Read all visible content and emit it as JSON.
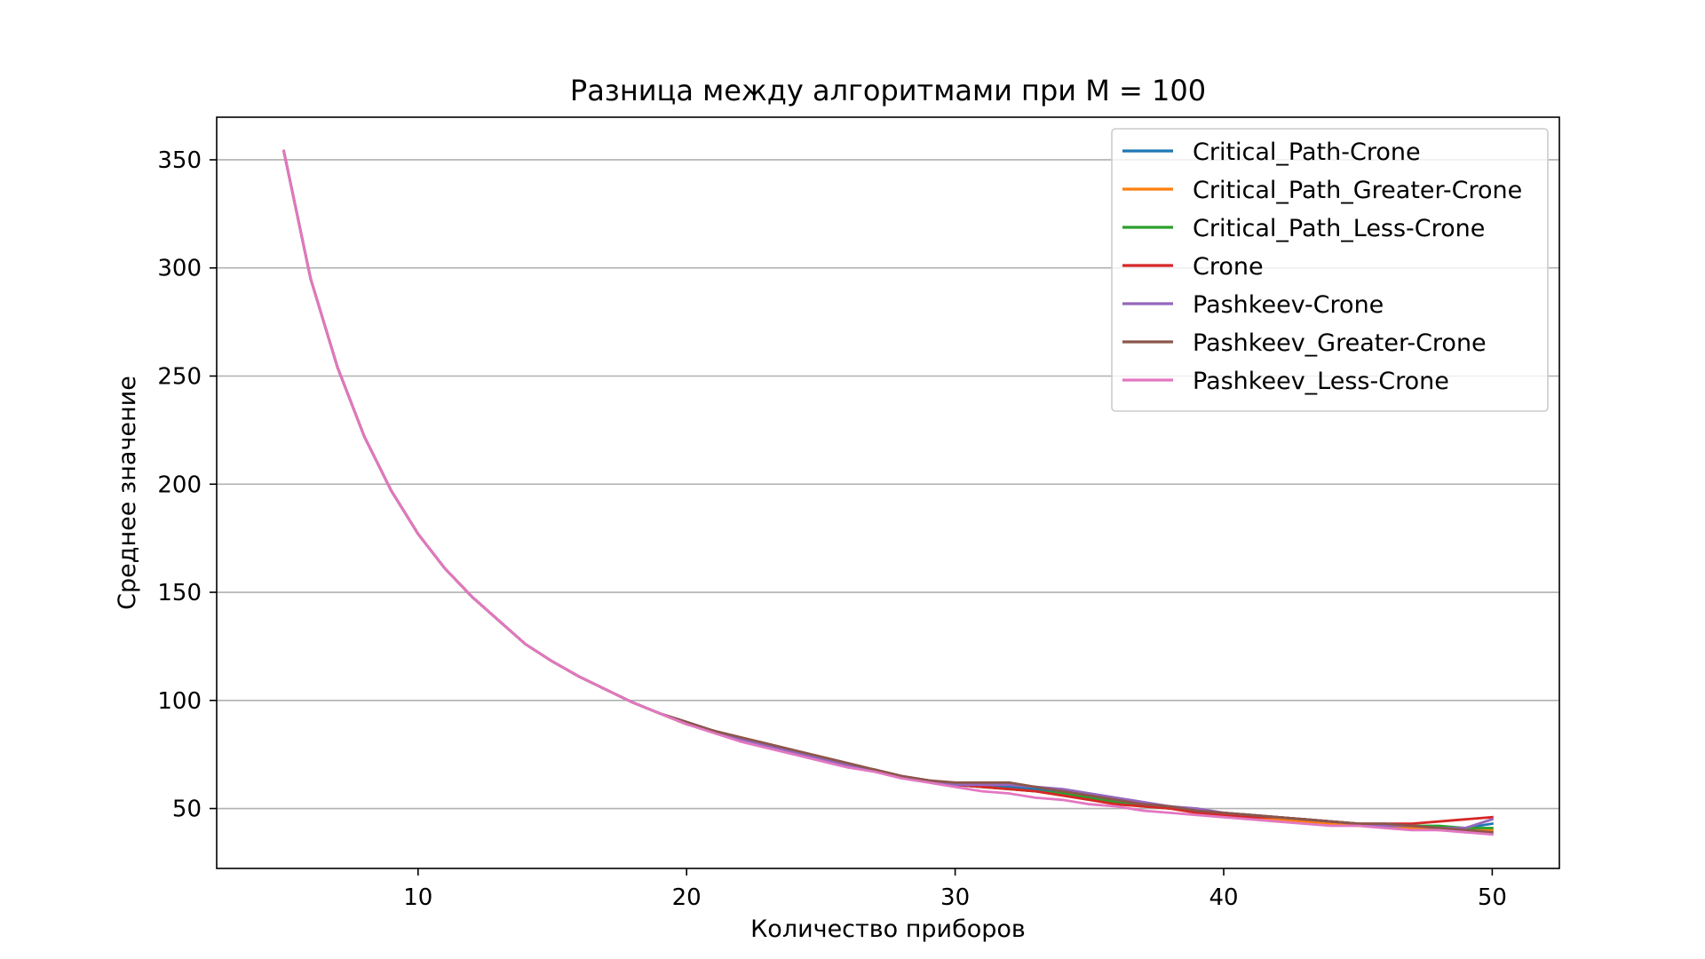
{
  "chart_data": {
    "type": "line",
    "title": "Разница между алгоритмами при M = 100",
    "xlabel": "Количество приборов",
    "ylabel": "Среднее значение",
    "xlim": [
      2.5,
      52.5
    ],
    "ylim": [
      22.3,
      369.7
    ],
    "xticks": [
      10,
      20,
      30,
      40,
      50
    ],
    "yticks": [
      50,
      100,
      150,
      200,
      250,
      300,
      350
    ],
    "grid": "horizontal",
    "legend_position": "top-right",
    "x": [
      5,
      6,
      7,
      8,
      9,
      10,
      11,
      12,
      13,
      14,
      15,
      16,
      17,
      18,
      19,
      20,
      21,
      22,
      23,
      24,
      25,
      26,
      27,
      28,
      29,
      30,
      31,
      32,
      33,
      34,
      35,
      36,
      37,
      38,
      39,
      40,
      41,
      42,
      43,
      44,
      45,
      46,
      47,
      48,
      49,
      50
    ],
    "series": [
      {
        "name": "Critical_Path-Crone",
        "color": "#1f77b4",
        "values": [
          354,
          295,
          254,
          222,
          197,
          177,
          161,
          148,
          137,
          126,
          118,
          111,
          105,
          99,
          94,
          89,
          86,
          82,
          79,
          76,
          73,
          70,
          68,
          65,
          63,
          61,
          60,
          60,
          59,
          58,
          56,
          54,
          52,
          51,
          49,
          48,
          47,
          46,
          45,
          44,
          43,
          42,
          42,
          41,
          41,
          43
        ]
      },
      {
        "name": "Critical_Path_Greater-Crone",
        "color": "#ff7f0e",
        "values": [
          354,
          295,
          254,
          222,
          197,
          177,
          161,
          148,
          137,
          126,
          118,
          111,
          105,
          99,
          94,
          89,
          86,
          82,
          79,
          76,
          73,
          70,
          68,
          65,
          63,
          61,
          60,
          59,
          58,
          56,
          54,
          52,
          51,
          50,
          48,
          47,
          46,
          45,
          44,
          43,
          42,
          42,
          41,
          40,
          40,
          40
        ]
      },
      {
        "name": "Critical_Path_Less-Crone",
        "color": "#2ca02c",
        "values": [
          354,
          295,
          254,
          222,
          197,
          177,
          161,
          148,
          137,
          126,
          118,
          111,
          105,
          99,
          94,
          89,
          86,
          82,
          79,
          76,
          73,
          70,
          68,
          65,
          63,
          61,
          60,
          59,
          58,
          57,
          55,
          53,
          51,
          50,
          49,
          48,
          47,
          46,
          45,
          44,
          43,
          42,
          42,
          42,
          41,
          41
        ]
      },
      {
        "name": "Crone",
        "color": "#d62728",
        "values": [
          354,
          295,
          254,
          222,
          197,
          177,
          161,
          148,
          137,
          126,
          118,
          111,
          105,
          99,
          94,
          89,
          86,
          82,
          79,
          76,
          73,
          70,
          68,
          65,
          63,
          61,
          60,
          59,
          58,
          56,
          54,
          52,
          51,
          50,
          48,
          47,
          46,
          46,
          45,
          44,
          43,
          43,
          43,
          44,
          45,
          46
        ]
      },
      {
        "name": "Pashkeev-Crone",
        "color": "#9467bd",
        "values": [
          354,
          295,
          254,
          222,
          197,
          177,
          161,
          148,
          137,
          126,
          118,
          111,
          105,
          99,
          94,
          90,
          86,
          82,
          79,
          76,
          73,
          70,
          68,
          65,
          63,
          61,
          61,
          61,
          60,
          59,
          57,
          55,
          53,
          51,
          50,
          48,
          47,
          46,
          45,
          44,
          43,
          42,
          42,
          41,
          41,
          45
        ]
      },
      {
        "name": "Pashkeev_Greater-Crone",
        "color": "#8c564b",
        "values": [
          354,
          295,
          254,
          222,
          197,
          177,
          161,
          148,
          137,
          126,
          118,
          111,
          105,
          99,
          94,
          90,
          86,
          83,
          80,
          77,
          74,
          71,
          68,
          65,
          63,
          62,
          62,
          62,
          60,
          58,
          56,
          54,
          52,
          51,
          49,
          48,
          47,
          46,
          45,
          44,
          43,
          43,
          42,
          41,
          40,
          39
        ]
      },
      {
        "name": "Pashkeev_Less-Crone",
        "color": "#e377c2",
        "values": [
          354,
          295,
          254,
          222,
          197,
          177,
          161,
          148,
          137,
          126,
          118,
          111,
          105,
          99,
          94,
          89,
          85,
          81,
          78,
          75,
          72,
          69,
          67,
          64,
          62,
          60,
          58,
          57,
          55,
          54,
          52,
          51,
          49,
          48,
          47,
          46,
          45,
          44,
          43,
          42,
          42,
          41,
          40,
          40,
          39,
          38
        ]
      }
    ]
  }
}
